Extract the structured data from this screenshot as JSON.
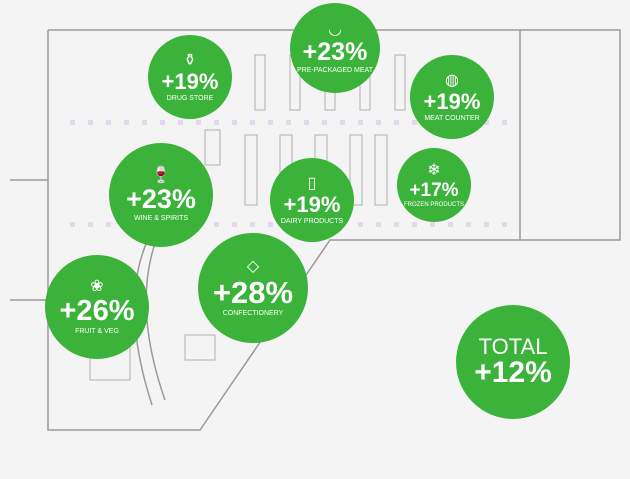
{
  "accent_color": "#3bb33a",
  "departments": [
    {
      "label": "DRUG STORE",
      "value": "+19%",
      "icon": "spray-bottle-icon",
      "glyph": "⚱"
    },
    {
      "label": "PRE-PACKAGED MEAT",
      "value": "+23%",
      "icon": "sausage-icon",
      "glyph": "◡"
    },
    {
      "label": "MEAT COUNTER",
      "value": "+19%",
      "icon": "steak-icon",
      "glyph": "◍"
    },
    {
      "label": "WINE & SPIRITS",
      "value": "+23%",
      "icon": "wine-bottle-icon",
      "glyph": "🍷"
    },
    {
      "label": "DAIRY PRODUCTS",
      "value": "+19%",
      "icon": "milk-carton-icon",
      "glyph": "▯"
    },
    {
      "label": "FROZEN PRODUCTS",
      "value": "+17%",
      "icon": "snowflake-icon",
      "glyph": "❄"
    },
    {
      "label": "CONFECTIONERY",
      "value": "+28%",
      "icon": "candy-icon",
      "glyph": "◇"
    },
    {
      "label": "FRUIT & VEG",
      "value": "+26%",
      "icon": "grapes-icon",
      "glyph": "❀"
    }
  ],
  "total": {
    "label": "TOTAL",
    "value": "+12%"
  }
}
